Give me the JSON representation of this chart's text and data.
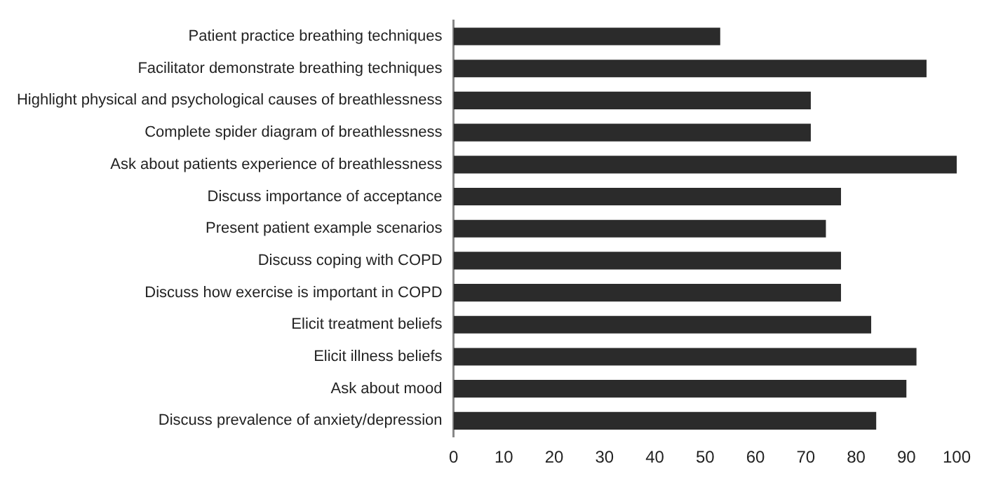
{
  "chart_data": {
    "type": "bar",
    "orientation": "horizontal",
    "categories": [
      "Patient practice breathing techniques",
      "Facilitator demonstrate breathing techniques",
      "Highlight physical and psychological causes of breathlessness",
      "Complete spider diagram of breathlessness",
      "Ask about patients experience of breathlessness",
      "Discuss importance of acceptance",
      "Present patient example scenarios",
      "Discuss coping with COPD",
      "Discuss how exercise is important in COPD",
      "Elicit treatment beliefs",
      "Elicit illness beliefs",
      "Ask about mood",
      "Discuss prevalence of anxiety/depression"
    ],
    "values": [
      53,
      94,
      71,
      71,
      100,
      77,
      74,
      77,
      77,
      83,
      92,
      90,
      84
    ],
    "color": "#2b2b2b",
    "xlim": [
      0,
      100
    ],
    "xticks": [
      0,
      10,
      20,
      30,
      40,
      50,
      60,
      70,
      80,
      90,
      100
    ],
    "grid": false,
    "legend": false
  }
}
